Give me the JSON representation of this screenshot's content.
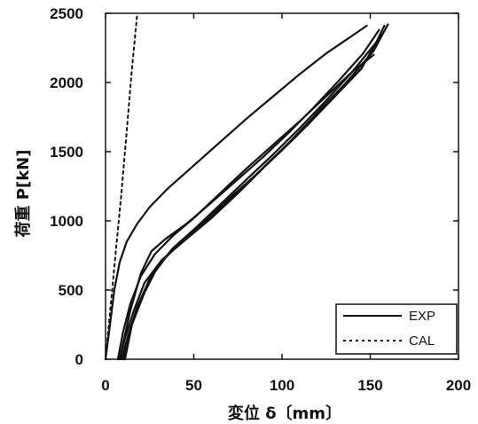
{
  "chart_data": {
    "type": "line",
    "xlabel": "変位 δ〔mm〕",
    "ylabel": "荷重 P[kN]",
    "xlim": [
      0,
      200
    ],
    "ylim": [
      0,
      2500
    ],
    "x_ticks": [
      "0",
      "50",
      "100",
      "150",
      "200"
    ],
    "y_ticks": [
      "0",
      "500",
      "1000",
      "1500",
      "2000",
      "2500"
    ],
    "grid": false,
    "legend_position": "bottom-right",
    "series": [
      {
        "name": "EXP",
        "style": "solid",
        "color": "#111111",
        "x": [
          0,
          3,
          5,
          8,
          12,
          18,
          25,
          35,
          50,
          65,
          80,
          95,
          110,
          125,
          140,
          148
        ],
        "y": [
          0,
          300,
          500,
          700,
          850,
          980,
          1100,
          1230,
          1400,
          1570,
          1740,
          1900,
          2060,
          2210,
          2340,
          2410
        ]
      },
      {
        "name": "EXP",
        "style": "solid",
        "color": "#111111",
        "x": [
          7,
          10,
          14,
          20,
          28,
          38,
          50,
          65,
          80,
          95,
          110,
          125,
          140,
          152
        ],
        "y": [
          0,
          200,
          400,
          600,
          760,
          890,
          1020,
          1200,
          1380,
          1550,
          1720,
          1900,
          2080,
          2200
        ]
      },
      {
        "name": "EXP",
        "style": "solid",
        "color": "#111111",
        "x": [
          8,
          11,
          16,
          22,
          32,
          45,
          60,
          75,
          90,
          105,
          120,
          135,
          150,
          158
        ],
        "y": [
          0,
          150,
          350,
          550,
          720,
          860,
          1020,
          1200,
          1390,
          1580,
          1780,
          1980,
          2200,
          2410
        ]
      },
      {
        "name": "EXP",
        "style": "solid",
        "color": "#111111",
        "x": [
          9,
          13,
          18,
          25,
          35,
          48,
          62,
          78,
          92,
          108,
          122,
          138,
          152,
          160
        ],
        "y": [
          0,
          180,
          380,
          580,
          750,
          900,
          1060,
          1240,
          1420,
          1610,
          1810,
          2020,
          2230,
          2420
        ]
      },
      {
        "name": "EXP",
        "style": "solid",
        "color": "#111111",
        "x": [
          10,
          14,
          20,
          28,
          38,
          52,
          66,
          80,
          95,
          110,
          125,
          140,
          154
        ],
        "y": [
          0,
          220,
          430,
          640,
          800,
          960,
          1130,
          1300,
          1480,
          1670,
          1870,
          2080,
          2300
        ]
      },
      {
        "name": "EXP",
        "style": "solid",
        "color": "#111111",
        "x": [
          11,
          15,
          22,
          30,
          42,
          56,
          70,
          85,
          100,
          115,
          130,
          145,
          156
        ],
        "y": [
          0,
          250,
          480,
          680,
          840,
          1000,
          1160,
          1330,
          1510,
          1700,
          1900,
          2100,
          2350
        ]
      },
      {
        "name": "EXP",
        "style": "solid",
        "color": "#111111",
        "x": [
          8,
          14,
          20,
          26,
          34,
          46,
          58,
          74,
          90,
          104,
          118,
          132,
          146,
          155
        ],
        "y": [
          0,
          350,
          620,
          780,
          870,
          980,
          1110,
          1290,
          1470,
          1640,
          1820,
          2010,
          2210,
          2380
        ]
      },
      {
        "name": "CAL",
        "style": "dotted",
        "color": "#111111",
        "x": [
          0,
          3,
          6,
          9,
          12,
          15,
          18
        ],
        "y": [
          0,
          400,
          800,
          1200,
          1650,
          2100,
          2500
        ]
      }
    ]
  }
}
